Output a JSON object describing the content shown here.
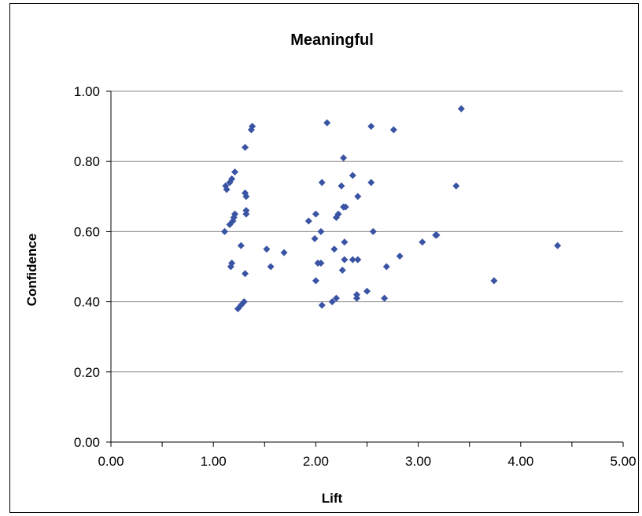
{
  "chart_data": {
    "type": "scatter",
    "title": "Meaningful",
    "xlabel": "Lift",
    "ylabel": "Confidence",
    "xlim": [
      0,
      5
    ],
    "ylim": [
      0,
      1
    ],
    "x_ticks": [
      "0.00",
      "1.00",
      "2.00",
      "3.00",
      "4.00",
      "5.00"
    ],
    "y_ticks": [
      "0.00",
      "0.20",
      "0.40",
      "0.60",
      "0.80",
      "1.00"
    ],
    "grid": "horizontal",
    "legend": "none",
    "marker_color": "#3A54A4",
    "points": [
      [
        1.12,
        0.73
      ],
      [
        1.13,
        0.72
      ],
      [
        1.16,
        0.74
      ],
      [
        1.18,
        0.75
      ],
      [
        1.21,
        0.77
      ],
      [
        1.11,
        0.6
      ],
      [
        1.16,
        0.62
      ],
      [
        1.19,
        0.63
      ],
      [
        1.2,
        0.64
      ],
      [
        1.21,
        0.65
      ],
      [
        1.27,
        0.56
      ],
      [
        1.18,
        0.51
      ],
      [
        1.17,
        0.5
      ],
      [
        1.31,
        0.48
      ],
      [
        1.24,
        0.38
      ],
      [
        1.27,
        0.39
      ],
      [
        1.3,
        0.4
      ],
      [
        1.31,
        0.84
      ],
      [
        1.37,
        0.89
      ],
      [
        1.38,
        0.9
      ],
      [
        1.31,
        0.71
      ],
      [
        1.32,
        0.7
      ],
      [
        1.32,
        0.66
      ],
      [
        1.32,
        0.65
      ],
      [
        1.52,
        0.55
      ],
      [
        1.56,
        0.5
      ],
      [
        1.69,
        0.54
      ],
      [
        1.93,
        0.63
      ],
      [
        2.0,
        0.65
      ],
      [
        1.99,
        0.58
      ],
      [
        2.05,
        0.6
      ],
      [
        2.02,
        0.51
      ],
      [
        2.05,
        0.51
      ],
      [
        2.0,
        0.46
      ],
      [
        2.06,
        0.39
      ],
      [
        2.06,
        0.74
      ],
      [
        2.11,
        0.91
      ],
      [
        2.16,
        0.4
      ],
      [
        2.2,
        0.41
      ],
      [
        2.18,
        0.55
      ],
      [
        2.2,
        0.64
      ],
      [
        2.22,
        0.65
      ],
      [
        2.25,
        0.73
      ],
      [
        2.27,
        0.67
      ],
      [
        2.29,
        0.67
      ],
      [
        2.27,
        0.81
      ],
      [
        2.26,
        0.49
      ],
      [
        2.28,
        0.57
      ],
      [
        2.28,
        0.52
      ],
      [
        2.36,
        0.52
      ],
      [
        2.41,
        0.52
      ],
      [
        2.36,
        0.76
      ],
      [
        2.41,
        0.7
      ],
      [
        2.4,
        0.42
      ],
      [
        2.4,
        0.41
      ],
      [
        2.5,
        0.43
      ],
      [
        2.54,
        0.9
      ],
      [
        2.54,
        0.74
      ],
      [
        2.56,
        0.6
      ],
      [
        2.67,
        0.41
      ],
      [
        2.69,
        0.5
      ],
      [
        2.76,
        0.89
      ],
      [
        2.82,
        0.53
      ],
      [
        3.04,
        0.57
      ],
      [
        3.17,
        0.59
      ],
      [
        3.18,
        0.59
      ],
      [
        3.37,
        0.73
      ],
      [
        3.42,
        0.95
      ],
      [
        3.74,
        0.46
      ],
      [
        4.36,
        0.56
      ]
    ]
  }
}
